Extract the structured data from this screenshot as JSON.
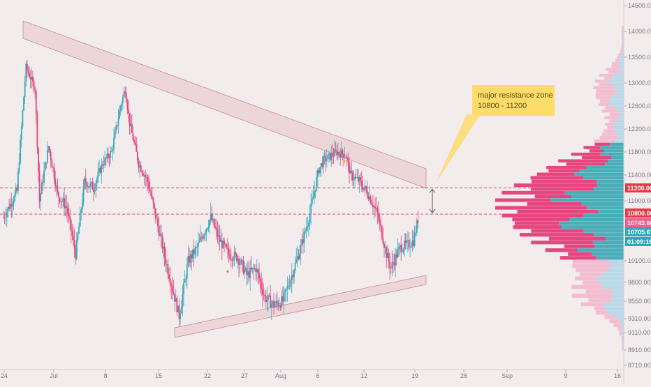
{
  "chart_data": {
    "type": "candlestick",
    "price_axis": {
      "ticks": [
        "14500.00",
        "14000.00",
        "13500.00",
        "13000.00",
        "12600.00",
        "12200.00",
        "11800.00",
        "11400.00",
        "11000.00",
        "10100.00",
        "9800.00",
        "9550.00",
        "9310.00",
        "9110.00",
        "8910.00",
        "8710.00"
      ],
      "tick_values": [
        14500,
        14000,
        13500,
        13000,
        12600,
        12200,
        11800,
        11400,
        11000,
        10100,
        9800,
        9550,
        9310,
        9110,
        8910,
        8710
      ],
      "range": [
        8650,
        14650
      ]
    },
    "time_axis": {
      "ticks": [
        "24",
        "Jul",
        "8",
        "15",
        "22",
        "27",
        "Aug",
        "6",
        "12",
        "19",
        "26",
        "Sep",
        "9",
        "16"
      ]
    },
    "price_tags": [
      {
        "label": "11200.00",
        "value": 11200,
        "color": "#e53946"
      },
      {
        "label": "10800.00",
        "value": 10800,
        "color": "#e53946"
      },
      {
        "label": "10743.66",
        "value": 10743.66,
        "color": "#ef5b8a"
      },
      {
        "label": "10705.67",
        "value": 10705.67,
        "color": "#2fa7b5"
      },
      {
        "label": "01:09:19",
        "value": 10560,
        "color": "#2fa7b5"
      }
    ],
    "horizontal_lines": [
      11200,
      10800
    ],
    "annotation": {
      "line1": "major resistance zone",
      "line2": "10800 - 11200"
    },
    "colors": {
      "up": "#37a9b8",
      "down": "#e8437b",
      "resistance_band": "#e9c4c8",
      "annotation_bg": "#fddc6c",
      "profile_up": "#4aaeb9",
      "profile_down": "#e5467f",
      "profile_up_light": "#b9d8e8",
      "profile_down_light": "#f2bdd0"
    },
    "close_path": [
      [
        0,
        10750
      ],
      [
        3,
        11150
      ],
      [
        5,
        13300
      ],
      [
        7,
        12900
      ],
      [
        8,
        11000
      ],
      [
        10,
        11900
      ],
      [
        12,
        11100
      ],
      [
        14,
        10900
      ],
      [
        16,
        10200
      ],
      [
        18,
        11300
      ],
      [
        20,
        11200
      ],
      [
        22,
        11600
      ],
      [
        24,
        11800
      ],
      [
        26,
        12600
      ],
      [
        27,
        12900
      ],
      [
        28,
        12300
      ],
      [
        30,
        11600
      ],
      [
        32,
        11300
      ],
      [
        34,
        10700
      ],
      [
        36,
        10100
      ],
      [
        38,
        9600
      ],
      [
        39,
        9350
      ],
      [
        41,
        10100
      ],
      [
        43,
        10300
      ],
      [
        45,
        10600
      ],
      [
        46,
        10750
      ],
      [
        48,
        10400
      ],
      [
        50,
        10200
      ],
      [
        52,
        10150
      ],
      [
        54,
        9900
      ],
      [
        56,
        10000
      ],
      [
        58,
        9600
      ],
      [
        60,
        9500
      ],
      [
        62,
        9550
      ],
      [
        64,
        9900
      ],
      [
        66,
        10300
      ],
      [
        68,
        10800
      ],
      [
        70,
        11500
      ],
      [
        71,
        11650
      ],
      [
        72,
        11700
      ],
      [
        74,
        11800
      ],
      [
        76,
        11750
      ],
      [
        77,
        11400
      ],
      [
        79,
        11300
      ],
      [
        81,
        11100
      ],
      [
        83,
        10800
      ],
      [
        85,
        10200
      ],
      [
        86,
        10000
      ],
      [
        88,
        10300
      ],
      [
        90,
        10350
      ],
      [
        91,
        10400
      ],
      [
        92,
        10720
      ]
    ],
    "volume_profile_from_price": 8900,
    "volume_profile_to_price": 14100
  }
}
